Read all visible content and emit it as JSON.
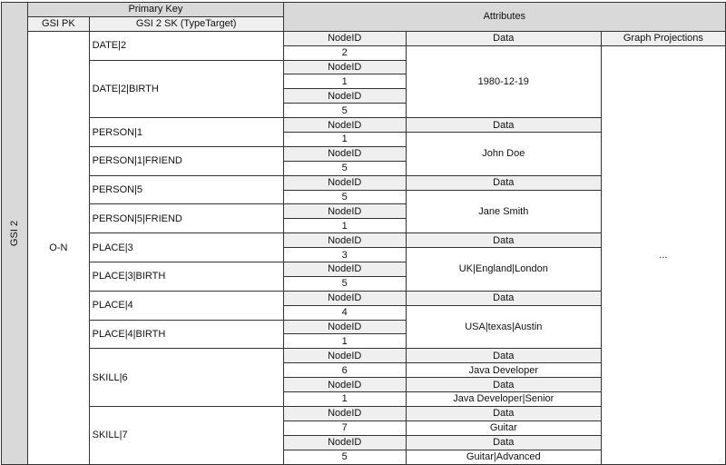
{
  "index_label": "GSI 2",
  "header": {
    "primary_key": "Primary Key",
    "attributes": "Attributes",
    "gsi_pk": "GSI PK",
    "gsi_sk": "GSI 2 SK (TypeTarget)"
  },
  "partition_key": "O-N",
  "node_id_label": "NodeID",
  "graph_projections": {
    "header": "Graph Projections",
    "value": "..."
  },
  "sort_keys": [
    {
      "label": "DATE|2",
      "node_ids": [
        "2"
      ]
    },
    {
      "label": "DATE|2|BIRTH",
      "node_ids": [
        "1",
        "5"
      ]
    },
    {
      "label": "PERSON|1",
      "node_ids": [
        "1"
      ]
    },
    {
      "label": "PERSON|1|FRIEND",
      "node_ids": [
        "5"
      ]
    },
    {
      "label": "PERSON|5",
      "node_ids": [
        "5"
      ]
    },
    {
      "label": "PERSON|5|FRIEND",
      "node_ids": [
        "1"
      ]
    },
    {
      "label": "PLACE|3",
      "node_ids": [
        "3"
      ]
    },
    {
      "label": "PLACE|3|BIRTH",
      "node_ids": [
        "5"
      ]
    },
    {
      "label": "PLACE|4",
      "node_ids": [
        "4"
      ]
    },
    {
      "label": "PLACE|4|BIRTH",
      "node_ids": [
        "1"
      ]
    },
    {
      "label": "SKILL|6",
      "node_ids": [
        "6",
        "1"
      ]
    },
    {
      "label": "SKILL|7",
      "node_ids": [
        "7",
        "5"
      ]
    }
  ],
  "data_cells": [
    {
      "kind": "header",
      "text": "Data"
    },
    {
      "kind": "value",
      "text": "1980-12-19",
      "span": 5
    },
    {
      "kind": "header",
      "text": "Data"
    },
    {
      "kind": "value",
      "text": "John Doe",
      "span": 3
    },
    {
      "kind": "header",
      "text": "Data"
    },
    {
      "kind": "value",
      "text": "Jane Smith",
      "span": 3
    },
    {
      "kind": "header",
      "text": "Data"
    },
    {
      "kind": "value",
      "text": "UK|England|London",
      "span": 3
    },
    {
      "kind": "header",
      "text": "Data"
    },
    {
      "kind": "value",
      "text": "USA|texas|Austin",
      "span": 3
    },
    {
      "kind": "header",
      "text": "Data"
    },
    {
      "kind": "value",
      "text": "Java Developer",
      "span": 1
    },
    {
      "kind": "header",
      "text": "Data"
    },
    {
      "kind": "value",
      "text": "Java Developer|Senior",
      "span": 1
    },
    {
      "kind": "header",
      "text": "Data"
    },
    {
      "kind": "value",
      "text": "Guitar",
      "span": 1
    },
    {
      "kind": "header",
      "text": "Data"
    },
    {
      "kind": "value",
      "text": "Guitar|Advanced",
      "span": 1
    }
  ]
}
